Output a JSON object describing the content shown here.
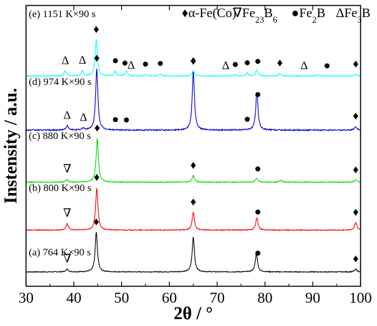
{
  "chart_data": {
    "type": "line",
    "xlabel": "2θ / °",
    "ylabel": "Instensity / a.u.",
    "xlim": [
      30,
      100
    ],
    "xticks": [
      30,
      40,
      50,
      60,
      70,
      80,
      90,
      100
    ],
    "y_tick_labels": "none",
    "grid": false,
    "legend": [
      {
        "symbol": "♦",
        "label": "α-Fe(Co)"
      },
      {
        "symbol": "∇",
        "label": "Fe23B6"
      },
      {
        "symbol": "●",
        "label": "Fe2B"
      },
      {
        "symbol": "Δ",
        "label": "Fe3B"
      }
    ],
    "legend_placement": "top-right",
    "series": [
      {
        "name": "(a) 764 K×90 s",
        "color": "#000000",
        "peaks": [
          {
            "x": 38.6,
            "h": 0.07
          },
          {
            "x": 44.7,
            "h": 1.0
          },
          {
            "x": 65.0,
            "h": 0.88
          },
          {
            "x": 78.2,
            "h": 0.46
          },
          {
            "x": 99.0,
            "h": 0.07
          }
        ],
        "markers": [
          {
            "symbol": "∇",
            "x": 38.6
          },
          {
            "symbol": "♦",
            "x": 44.7
          },
          {
            "symbol": "●",
            "x": 78.5
          },
          {
            "symbol": "♦",
            "x": 99.0
          }
        ]
      },
      {
        "name": "(b) 800 K×90 s",
        "color": "#ff0000",
        "peaks": [
          {
            "x": 38.6,
            "h": 0.15
          },
          {
            "x": 44.8,
            "h": 1.0
          },
          {
            "x": 65.0,
            "h": 0.42
          },
          {
            "x": 78.3,
            "h": 0.28
          },
          {
            "x": 99.0,
            "h": 0.18
          }
        ],
        "markers": [
          {
            "symbol": "∇",
            "x": 38.6
          },
          {
            "symbol": "♦",
            "x": 44.8
          },
          {
            "symbol": "♦",
            "x": 65.0
          },
          {
            "symbol": "●",
            "x": 78.5
          },
          {
            "symbol": "♦",
            "x": 99.0
          }
        ]
      },
      {
        "name": "(c) 880 K×90 s",
        "color": "#00dd00",
        "peaks": [
          {
            "x": 38.6,
            "h": 0.06
          },
          {
            "x": 44.9,
            "h": 1.0
          },
          {
            "x": 65.0,
            "h": 0.15
          },
          {
            "x": 78.3,
            "h": 0.1
          },
          {
            "x": 83.3,
            "h": 0.04
          },
          {
            "x": 99.0,
            "h": 0.05
          }
        ],
        "markers": [
          {
            "symbol": "∇",
            "x": 38.6
          },
          {
            "symbol": "♦",
            "x": 44.9
          },
          {
            "symbol": "♦",
            "x": 65.0
          },
          {
            "symbol": "●",
            "x": 78.5
          },
          {
            "symbol": "♦",
            "x": 99.0
          }
        ]
      },
      {
        "name": "(d) 974 K×90 s",
        "color": "#0000cc",
        "peaks": [
          {
            "x": 38.6,
            "h": 0.07
          },
          {
            "x": 42.0,
            "h": 0.03
          },
          {
            "x": 44.8,
            "h": 1.0
          },
          {
            "x": 65.0,
            "h": 0.95
          },
          {
            "x": 78.3,
            "h": 0.62
          },
          {
            "x": 99.0,
            "h": 0.06
          }
        ],
        "markers": [
          {
            "symbol": "Δ",
            "x": 38.6
          },
          {
            "symbol": "Δ",
            "x": 42.0
          },
          {
            "symbol": "♦",
            "x": 44.8
          },
          {
            "symbol": "●",
            "x": 48.7
          },
          {
            "symbol": "●",
            "x": 51.0
          },
          {
            "symbol": "♦",
            "x": 65.0
          },
          {
            "symbol": "●",
            "x": 76.3
          },
          {
            "symbol": "●",
            "x": 78.5
          },
          {
            "symbol": "♦",
            "x": 99.0
          }
        ]
      },
      {
        "name": "(e) 1151 K×90 s",
        "color": "#00ffff",
        "peaks": [
          {
            "x": 38.2,
            "h": 0.14
          },
          {
            "x": 41.8,
            "h": 0.14
          },
          {
            "x": 44.7,
            "h": 1.0
          },
          {
            "x": 48.7,
            "h": 0.13
          },
          {
            "x": 51.0,
            "h": 0.15
          },
          {
            "x": 55.0,
            "h": 0.04
          },
          {
            "x": 58.1,
            "h": 0.06
          },
          {
            "x": 65.0,
            "h": 0.14
          },
          {
            "x": 73.8,
            "h": 0.04
          },
          {
            "x": 76.3,
            "h": 0.08
          },
          {
            "x": 78.3,
            "h": 0.18
          },
          {
            "x": 83.1,
            "h": 0.07
          },
          {
            "x": 91.0,
            "h": 0.04
          },
          {
            "x": 99.0,
            "h": 0.05
          }
        ],
        "markers": [
          {
            "symbol": "Δ",
            "x": 38.2
          },
          {
            "symbol": "Δ",
            "x": 41.8
          },
          {
            "symbol": "♦",
            "x": 44.7
          },
          {
            "symbol": "●",
            "x": 48.7
          },
          {
            "symbol": "●",
            "x": 50.7
          },
          {
            "symbol": "Δ",
            "x": 52.0
          },
          {
            "symbol": "●",
            "x": 55.0
          },
          {
            "symbol": "●",
            "x": 58.1
          },
          {
            "symbol": "♦",
            "x": 65.0
          },
          {
            "symbol": "Δ",
            "x": 71.8
          },
          {
            "symbol": "●",
            "x": 73.8
          },
          {
            "symbol": "●",
            "x": 76.3
          },
          {
            "symbol": "●",
            "x": 78.5
          },
          {
            "symbol": "♦",
            "x": 83.1
          },
          {
            "symbol": "Δ",
            "x": 88.2
          },
          {
            "symbol": "●",
            "x": 93.0
          },
          {
            "symbol": "♦",
            "x": 99.0
          }
        ]
      }
    ]
  }
}
